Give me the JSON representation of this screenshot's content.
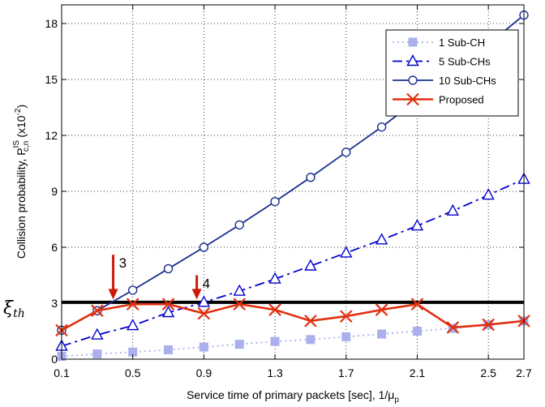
{
  "chart_data": {
    "type": "line",
    "xlabel": "Service time of primary packets [sec], 1/μ",
    "xlabel_sub": "p",
    "ylabel": "Collision probability, P",
    "ylabel_sup": "IS",
    "ylabel_sub": "c,n",
    "ylabel_unit": "(x10",
    "ylabel_unit_exp": "-2",
    "ylabel_unit_close": ")",
    "xlim": [
      0.1,
      2.7
    ],
    "ylim": [
      0,
      19
    ],
    "xticks": [
      0.1,
      0.5,
      0.9,
      1.3,
      1.7,
      2.1,
      2.5,
      2.7
    ],
    "xtick_labels": [
      "0.1",
      "0.5",
      "0.9",
      "1.3",
      "1.7",
      "2.1",
      "2.5",
      "2.7"
    ],
    "yticks": [
      0,
      3,
      6,
      9,
      12,
      15,
      18
    ],
    "ytick_labels": [
      "0",
      "3",
      "6",
      "9",
      "12",
      "15",
      "18"
    ],
    "grid": true,
    "legend_position": "top-right",
    "threshold": {
      "y": 3.05,
      "label": "ξ",
      "label_sub": "th"
    },
    "annotations": [
      {
        "text": "3",
        "x": 0.39,
        "y_from": 5.6,
        "y_to": 3.2
      },
      {
        "text": "4",
        "x": 0.86,
        "y_from": 4.5,
        "y_to": 3.2
      }
    ],
    "series": [
      {
        "name": "1 Sub-CH",
        "color": "#aab0ee",
        "dash": "2,4",
        "marker": "square",
        "x": [
          0.1,
          0.3,
          0.5,
          0.7,
          0.9,
          1.1,
          1.3,
          1.5,
          1.7,
          1.9,
          2.1,
          2.3,
          2.5,
          2.7
        ],
        "y": [
          0.15,
          0.28,
          0.38,
          0.5,
          0.65,
          0.8,
          0.95,
          1.05,
          1.2,
          1.35,
          1.5,
          1.65,
          1.85,
          2.05
        ]
      },
      {
        "name": "5 Sub-CHs",
        "color": "#0000cc",
        "dash": "12,5,3,5",
        "marker": "triangle",
        "x": [
          0.1,
          0.3,
          0.5,
          0.7,
          0.9,
          1.1,
          1.3,
          1.5,
          1.7,
          1.9,
          2.1,
          2.3,
          2.5,
          2.7
        ],
        "y": [
          0.7,
          1.3,
          1.8,
          2.5,
          3.05,
          3.65,
          4.3,
          5.0,
          5.7,
          6.4,
          7.15,
          7.95,
          8.8,
          9.65
        ]
      },
      {
        "name": "10 Sub-CHs",
        "color": "#1a2f8c",
        "dash": "",
        "marker": "circle",
        "x": [
          0.1,
          0.3,
          0.5,
          0.7,
          0.9,
          1.1,
          1.3,
          1.5,
          1.7,
          1.9,
          2.1,
          2.3,
          2.5,
          2.7
        ],
        "y": [
          1.55,
          2.6,
          3.7,
          4.85,
          6.0,
          7.2,
          8.45,
          9.75,
          11.1,
          12.45,
          13.9,
          15.4,
          16.9,
          18.45
        ]
      },
      {
        "name": "Proposed",
        "color": "#e03010",
        "dash": "",
        "marker": "x",
        "x": [
          0.1,
          0.3,
          0.5,
          0.7,
          0.9,
          1.1,
          1.3,
          1.5,
          1.7,
          1.9,
          2.1,
          2.3,
          2.5,
          2.7
        ],
        "y": [
          1.55,
          2.6,
          2.95,
          2.95,
          2.45,
          2.95,
          2.65,
          2.05,
          2.3,
          2.65,
          2.95,
          1.7,
          1.85,
          2.05
        ]
      }
    ]
  }
}
